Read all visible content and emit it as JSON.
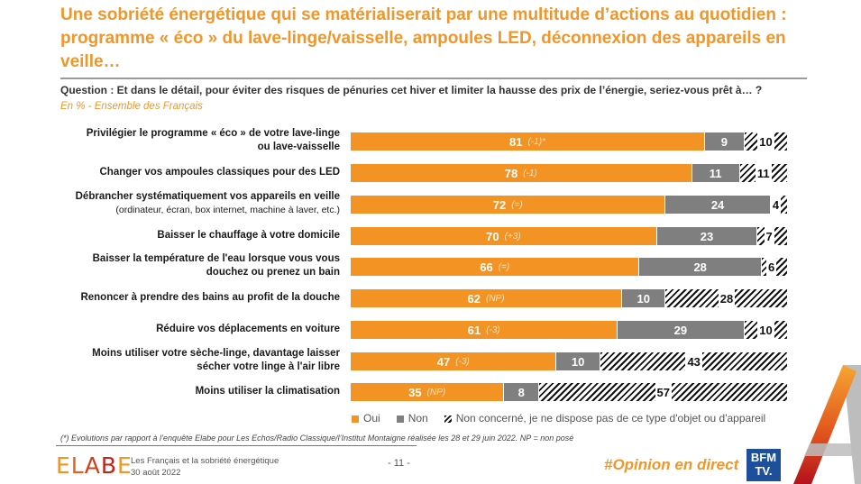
{
  "header": {
    "title": "Une sobriété énergétique qui se matérialiserait par une multitude d’actions au quotidien : programme « éco » du lave-linge/vaisselle, ampoules LED, déconnexion des appareils en veille…",
    "question": "Question : Et dans le détail, pour éviter des risques de pénuries cet hiver et limiter la hausse des prix de l’énergie, seriez-vous prêt à… ?",
    "base": "En % - Ensemble des Français"
  },
  "colors": {
    "oui": "#f29323",
    "non": "#7f7f7f",
    "accent": "#f0962a"
  },
  "chart_data": {
    "type": "bar",
    "orientation": "horizontal-stacked-100",
    "title": "Une sobriété énergétique qui se matérialiserait par une multitude d’actions au quotidien",
    "unit": "%",
    "legend_position": "bottom",
    "categories": [
      {
        "label": "Privilégier le programme « éco » de votre lave-linge",
        "label2": "ou lave-vaisselle",
        "sub": ""
      },
      {
        "label": "Changer vos ampoules classiques pour des LED",
        "label2": "",
        "sub": ""
      },
      {
        "label": "Débrancher systématiquement vos appareils en veille",
        "label2": "",
        "sub": "(ordinateur, écran, box internet, machine à laver, etc.)"
      },
      {
        "label": "Baisser le chauffage à votre domicile",
        "label2": "",
        "sub": ""
      },
      {
        "label": "Baisser la température de l'eau lorsque vous vous",
        "label2": "douchez ou prenez un bain",
        "sub": ""
      },
      {
        "label": "Renoncer à prendre des bains au profit de la douche",
        "label2": "",
        "sub": ""
      },
      {
        "label": "Réduire vos déplacements en voiture",
        "label2": "",
        "sub": ""
      },
      {
        "label": "Moins utiliser votre sèche-linge, davantage laisser",
        "label2": "sécher votre linge à l'air libre",
        "sub": ""
      },
      {
        "label": "Moins utiliser la climatisation",
        "label2": "",
        "sub": ""
      }
    ],
    "series": [
      {
        "name": "Oui",
        "values": [
          81,
          78,
          72,
          70,
          66,
          62,
          61,
          47,
          35
        ],
        "evolutions": [
          "(-1)*",
          "(-1)",
          "(=)",
          "(+3)",
          "(=)",
          "(NP)",
          "(-3)",
          "(-3)",
          "(NP)"
        ]
      },
      {
        "name": "Non",
        "values": [
          9,
          11,
          24,
          23,
          28,
          10,
          29,
          10,
          8
        ]
      },
      {
        "name": "Non concerné, je ne dispose pas de ce type d'objet ou d'appareil",
        "values": [
          10,
          11,
          4,
          7,
          6,
          28,
          10,
          43,
          57
        ]
      }
    ],
    "xlim": [
      0,
      100
    ]
  },
  "legend": {
    "oui": "Oui",
    "non": "Non",
    "nc": "Non concerné, je ne dispose pas de ce type d'objet ou d'appareil"
  },
  "footer": {
    "note": "(*) Evolutions par rapport à l’enquête Elabe pour Les Echos/Radio Classique/l’Institut Montaigne réalisée les 28 et 29 juin 2022. NP = non posé",
    "logo": "ELABE",
    "study_title": "Les Français et la sobriété énergétique",
    "study_date": "30 août 2022",
    "page": "- 11 -",
    "hashtag": "#Opinion en direct",
    "bfm_line1": "BFM",
    "bfm_line2": "TV."
  }
}
